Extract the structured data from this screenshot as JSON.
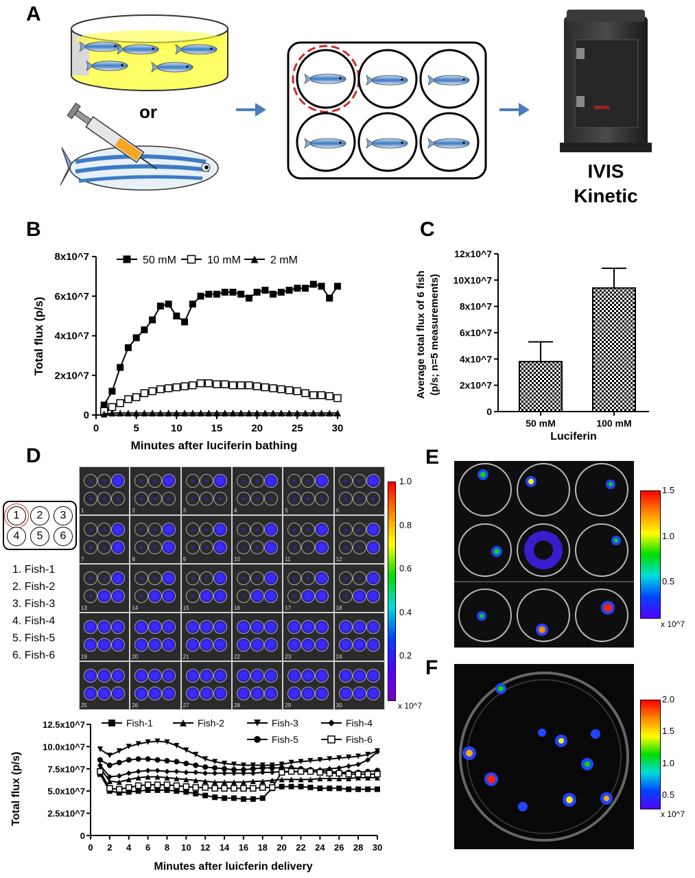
{
  "panels": {
    "A": "A",
    "B": "B",
    "C": "C",
    "D": "D",
    "E": "E",
    "F": "F"
  },
  "panelA": {
    "or_text": "or",
    "instrument_line1": "IVIS",
    "instrument_line2": "Kinetic"
  },
  "chartB": {
    "type": "line",
    "xlabel": "Minutes after luciferin bathing",
    "ylabel": "Total flux (p/s)",
    "yticks": [
      "0",
      "2x10^7",
      "4x10^7",
      "6x10^7",
      "8x10^7"
    ],
    "xticks": [
      "0",
      "5",
      "10",
      "15",
      "20",
      "25",
      "30"
    ],
    "legend": [
      "50 mM",
      "10 mM",
      "2 mM"
    ]
  },
  "chartC": {
    "type": "bar",
    "xlabel": "Luciferin",
    "ylabel_line1": "Average total flux of 6 fish",
    "ylabel_line2": "(p/s; n=5 measurements)",
    "yticks": [
      "0",
      "2x10^7",
      "4x10^7",
      "6x10^7",
      "8x10^7",
      "10X10^7",
      "12x10^7"
    ],
    "categories": [
      "50 mM",
      "100 mM"
    ]
  },
  "panelD": {
    "wells": [
      "1",
      "2",
      "3",
      "4",
      "5",
      "6"
    ],
    "fish_list": [
      "1. Fish-1",
      "2. Fish-2",
      "3. Fish-3",
      "4. Fish-4",
      "5. Fish-5",
      "6. Fish-6"
    ],
    "scale_ticks": [
      "1.0",
      "0.8",
      "0.6",
      "0.4",
      "0.2"
    ],
    "scale_unit": "x 10^7",
    "frame_numbers": [
      "1",
      "2",
      "3",
      "4",
      "5",
      "6",
      "7",
      "8",
      "9",
      "10",
      "11",
      "12",
      "13",
      "14",
      "15",
      "16",
      "17",
      "18",
      "19",
      "20",
      "21",
      "22",
      "23",
      "24",
      "25",
      "26",
      "27",
      "28",
      "29",
      "30"
    ]
  },
  "chartD2": {
    "type": "line",
    "xlabel": "Minutes after luicferin delivery",
    "ylabel": "Total flux (p/s)",
    "yticks": [
      "0",
      "2.5x10^7",
      "5.0x10^7",
      "7.5x10^7",
      "10.0x10^7",
      "12.5x10^7"
    ],
    "xticks": [
      "0",
      "2",
      "4",
      "6",
      "8",
      "10",
      "12",
      "14",
      "16",
      "18",
      "20",
      "22",
      "24",
      "26",
      "28",
      "30"
    ],
    "legend": [
      "Fish-1",
      "Fish-2",
      "Fish-3",
      "Fish-4",
      "Fish-5",
      "Fish-6"
    ]
  },
  "panelE": {
    "scale_ticks": [
      "1.5",
      "1.0",
      "0.5"
    ],
    "scale_unit": "x 10^7"
  },
  "panelF": {
    "scale_ticks": [
      "2.0",
      "1.5",
      "1.0",
      "0.5"
    ],
    "scale_unit": "x 10^7"
  },
  "chart_data": [
    {
      "type": "line",
      "title": "",
      "xlabel": "Minutes after luciferin bathing",
      "ylabel": "Total flux (p/s)",
      "xlim": [
        0,
        30
      ],
      "ylim": [
        0,
        80000000.0
      ],
      "legend_position": "top",
      "series": [
        {
          "name": "50 mM",
          "marker": "filled-square",
          "x": [
            1,
            2,
            3,
            4,
            5,
            6,
            7,
            8,
            9,
            10,
            11,
            12,
            13,
            14,
            15,
            16,
            17,
            18,
            19,
            20,
            21,
            22,
            23,
            24,
            25,
            26,
            27,
            28,
            29,
            30
          ],
          "y": [
            5000000.0,
            12000000.0,
            24000000.0,
            34000000.0,
            39000000.0,
            43000000.0,
            48000000.0,
            55000000.0,
            56000000.0,
            50000000.0,
            47000000.0,
            56000000.0,
            60000000.0,
            61000000.0,
            61000000.0,
            62000000.0,
            62000000.0,
            61000000.0,
            59000000.0,
            62000000.0,
            63000000.0,
            61000000.0,
            62000000.0,
            63000000.0,
            64000000.0,
            64000000.0,
            66000000.0,
            65000000.0,
            59000000.0,
            65000000.0
          ]
        },
        {
          "name": "10 mM",
          "marker": "open-square",
          "x": [
            1,
            2,
            3,
            4,
            5,
            6,
            7,
            8,
            9,
            10,
            11,
            12,
            13,
            14,
            15,
            16,
            17,
            18,
            19,
            20,
            21,
            22,
            23,
            24,
            25,
            26,
            27,
            28,
            29,
            30
          ],
          "y": [
            2000000.0,
            4000000.0,
            6000000.0,
            8000000.0,
            9000000.0,
            11000000.0,
            12000000.0,
            13000000.0,
            13500000.0,
            14000000.0,
            14500000.0,
            15000000.0,
            16000000.0,
            16000000.0,
            15500000.0,
            15500000.0,
            15000000.0,
            15000000.0,
            15000000.0,
            14500000.0,
            14000000.0,
            13500000.0,
            13000000.0,
            12500000.0,
            12000000.0,
            11000000.0,
            10000000.0,
            10000000.0,
            9500000.0,
            8500000.0
          ]
        },
        {
          "name": "2 mM",
          "marker": "filled-triangle",
          "x": [
            1,
            2,
            3,
            4,
            5,
            6,
            7,
            8,
            9,
            10,
            11,
            12,
            13,
            14,
            15,
            16,
            17,
            18,
            19,
            20,
            21,
            22,
            23,
            24,
            25,
            26,
            27,
            28,
            29,
            30
          ],
          "y": [
            500000.0,
            1000000.0,
            1000000.0,
            1000000.0,
            1000000.0,
            1000000.0,
            1000000.0,
            1000000.0,
            1000000.0,
            1000000.0,
            1000000.0,
            1000000.0,
            1000000.0,
            1000000.0,
            1000000.0,
            1000000.0,
            1000000.0,
            1000000.0,
            1000000.0,
            1000000.0,
            1000000.0,
            1000000.0,
            1000000.0,
            1000000.0,
            1000000.0,
            1000000.0,
            1000000.0,
            1000000.0,
            1000000.0,
            1000000.0
          ]
        }
      ]
    },
    {
      "type": "bar",
      "title": "",
      "xlabel": "Luciferin",
      "ylabel": "Average total flux of 6 fish (p/s; n=5 measurements)",
      "ylim": [
        0,
        120000000.0
      ],
      "categories": [
        "50 mM",
        "100 mM"
      ],
      "values": [
        38000000.0,
        94000000.0
      ],
      "errors": [
        15000000.0,
        15000000.0
      ]
    },
    {
      "type": "line",
      "title": "",
      "xlabel": "Minutes after luicferin delivery",
      "ylabel": "Total flux (p/s)",
      "xlim": [
        0,
        30
      ],
      "ylim": [
        0,
        125000000.0
      ],
      "legend_position": "top",
      "series": [
        {
          "name": "Fish-1",
          "marker": "filled-square",
          "x": [
            1,
            2,
            3,
            4,
            5,
            6,
            7,
            8,
            9,
            10,
            11,
            12,
            13,
            14,
            15,
            16,
            17,
            18,
            19,
            20,
            21,
            22,
            23,
            24,
            25,
            26,
            27,
            28,
            29,
            30
          ],
          "y": [
            69000000.0,
            50000000.0,
            48000000.0,
            49000000.0,
            50000000.0,
            51000000.0,
            51000000.0,
            51000000.0,
            50000000.0,
            49000000.0,
            47000000.0,
            45000000.0,
            43000000.0,
            42000000.0,
            42000000.0,
            41000000.0,
            41000000.0,
            42000000.0,
            53000000.0,
            55000000.0,
            55000000.0,
            55000000.0,
            54000000.0,
            53000000.0,
            53000000.0,
            53000000.0,
            52000000.0,
            52000000.0,
            52000000.0,
            52000000.0
          ]
        },
        {
          "name": "Fish-2",
          "marker": "filled-triangle",
          "x": [
            1,
            2,
            3,
            4,
            5,
            6,
            7,
            8,
            9,
            10,
            11,
            12,
            13,
            14,
            15,
            16,
            17,
            18,
            19,
            20,
            21,
            22,
            23,
            24,
            25,
            26,
            27,
            28,
            29,
            30
          ],
          "y": [
            76000000.0,
            61000000.0,
            60000000.0,
            63000000.0,
            65000000.0,
            66000000.0,
            66000000.0,
            65000000.0,
            64000000.0,
            63000000.0,
            62000000.0,
            61000000.0,
            60000000.0,
            60000000.0,
            60000000.0,
            60000000.0,
            61000000.0,
            61000000.0,
            62000000.0,
            63000000.0,
            63000000.0,
            63000000.0,
            63000000.0,
            64000000.0,
            64000000.0,
            64000000.0,
            64000000.0,
            65000000.0,
            65000000.0,
            65000000.0
          ]
        },
        {
          "name": "Fish-3",
          "marker": "filled-inverted-triangle",
          "x": [
            1,
            2,
            3,
            4,
            5,
            6,
            7,
            8,
            9,
            10,
            11,
            12,
            13,
            14,
            15,
            16,
            17,
            18,
            19,
            20,
            21,
            22,
            23,
            24,
            25,
            26,
            27,
            28,
            29,
            30
          ],
          "y": [
            97000000.0,
            90000000.0,
            95000000.0,
            100000000.0,
            103000000.0,
            105000000.0,
            106000000.0,
            105000000.0,
            101000000.0,
            96000000.0,
            91000000.0,
            86000000.0,
            83000000.0,
            81000000.0,
            80000000.0,
            79000000.0,
            79000000.0,
            79000000.0,
            79000000.0,
            80000000.0,
            82000000.0,
            83000000.0,
            84000000.0,
            85000000.0,
            86000000.0,
            87000000.0,
            88000000.0,
            89000000.0,
            91000000.0,
            95000000.0
          ]
        },
        {
          "name": "Fish-4",
          "marker": "filled-diamond",
          "x": [
            1,
            2,
            3,
            4,
            5,
            6,
            7,
            8,
            9,
            10,
            11,
            12,
            13,
            14,
            15,
            16,
            17,
            18,
            19,
            20,
            21,
            22,
            23,
            24,
            25,
            26,
            27,
            28,
            29,
            30
          ],
          "y": [
            79000000.0,
            66000000.0,
            67000000.0,
            70000000.0,
            72000000.0,
            73000000.0,
            73000000.0,
            72000000.0,
            72000000.0,
            71000000.0,
            71000000.0,
            70000000.0,
            70000000.0,
            70000000.0,
            70000000.0,
            70000000.0,
            70000000.0,
            71000000.0,
            71000000.0,
            72000000.0,
            72000000.0,
            72000000.0,
            73000000.0,
            74000000.0,
            75000000.0,
            76000000.0,
            78000000.0,
            80000000.0,
            85000000.0,
            94000000.0
          ]
        },
        {
          "name": "Fish-5",
          "marker": "filled-circle",
          "x": [
            1,
            2,
            3,
            4,
            5,
            6,
            7,
            8,
            9,
            10,
            11,
            12,
            13,
            14,
            15,
            16,
            17,
            18,
            19,
            20,
            21,
            22,
            23,
            24,
            25,
            26,
            27,
            28,
            29,
            30
          ],
          "y": [
            85000000.0,
            79000000.0,
            82000000.0,
            85000000.0,
            86000000.0,
            86000000.0,
            85000000.0,
            84000000.0,
            83000000.0,
            81000000.0,
            79000000.0,
            77000000.0,
            76000000.0,
            75000000.0,
            74000000.0,
            74000000.0,
            75000000.0,
            76000000.0,
            76000000.0,
            76000000.0,
            76000000.0,
            75000000.0,
            74000000.0,
            73000000.0,
            72000000.0,
            71000000.0,
            71000000.0,
            71000000.0,
            72000000.0,
            73000000.0
          ]
        },
        {
          "name": "Fish-6",
          "marker": "open-square",
          "x": [
            1,
            2,
            3,
            4,
            5,
            6,
            7,
            8,
            9,
            10,
            11,
            12,
            13,
            14,
            15,
            16,
            17,
            18,
            19,
            20,
            21,
            22,
            23,
            24,
            25,
            26,
            27,
            28,
            29,
            30
          ],
          "y": [
            72000000.0,
            53000000.0,
            52000000.0,
            54000000.0,
            56000000.0,
            57000000.0,
            57000000.0,
            57000000.0,
            56000000.0,
            55000000.0,
            54000000.0,
            54000000.0,
            53000000.0,
            53000000.0,
            53000000.0,
            53000000.0,
            53000000.0,
            54000000.0,
            54000000.0,
            71000000.0,
            72000000.0,
            72000000.0,
            72000000.0,
            71000000.0,
            70000000.0,
            70000000.0,
            69000000.0,
            69000000.0,
            69000000.0,
            69000000.0
          ]
        }
      ]
    }
  ]
}
